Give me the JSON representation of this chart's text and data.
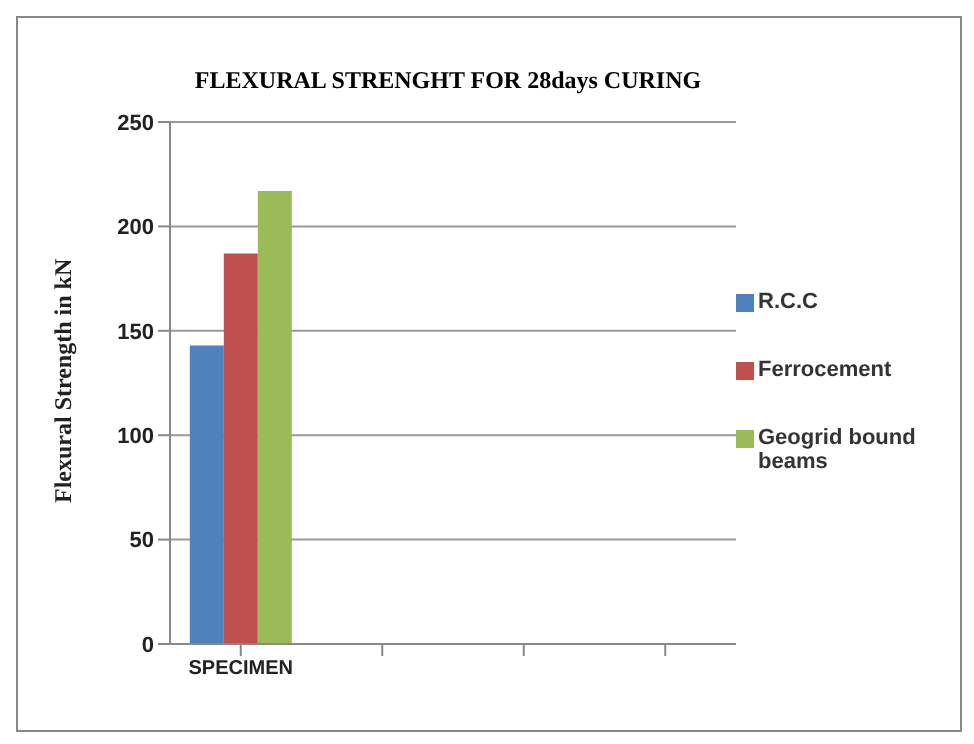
{
  "chart_data": {
    "type": "bar",
    "title": "FLEXURAL STRENGHT FOR 28days CURING",
    "ylabel": "Flexural  Strength  in  kN",
    "categories": [
      "SPECIMEN",
      null,
      null,
      null
    ],
    "series": [
      {
        "name": "R.C.C",
        "color": "#4f81bd",
        "values": [
          143,
          null,
          null,
          null
        ]
      },
      {
        "name": "Ferrocement",
        "color": "#c0504d",
        "values": [
          187,
          null,
          null,
          null
        ]
      },
      {
        "name": "Geogrid bound beams",
        "color": "#9bbb59",
        "values": [
          217,
          null,
          null,
          null
        ]
      }
    ],
    "ylim": [
      0,
      250
    ],
    "yticks": [
      0,
      50,
      100,
      150,
      200,
      250
    ],
    "grid": "y",
    "legend": "right"
  }
}
